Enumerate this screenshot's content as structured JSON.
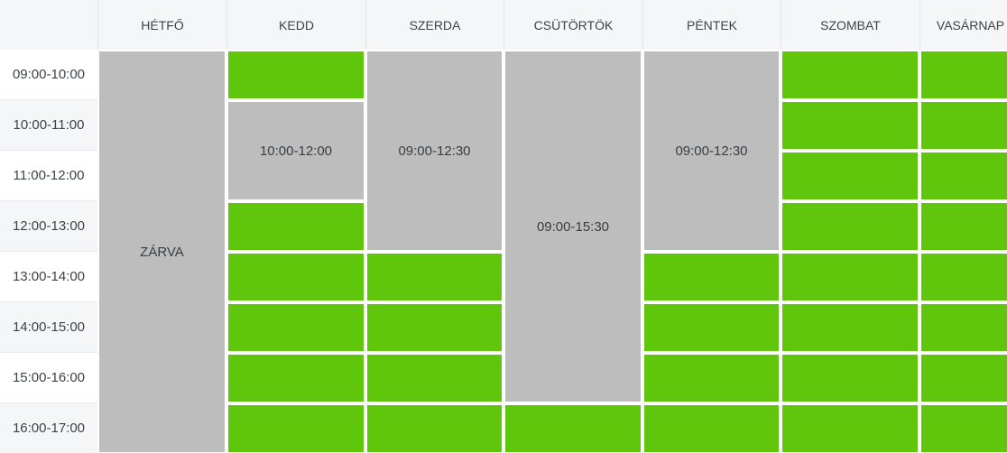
{
  "widget": {
    "type": "weekly-opening-hours-schedule",
    "header": {
      "corner_label": "",
      "days": [
        "HÉTFŐ",
        "KEDD",
        "SZERDA",
        "CSÜTÖRTÖK",
        "PÉNTEK",
        "SZOMBAT",
        "VASÁRNAP"
      ]
    },
    "time_slots": [
      "09:00-10:00",
      "10:00-11:00",
      "11:00-12:00",
      "12:00-13:00",
      "13:00-14:00",
      "14:00-15:00",
      "15:00-16:00",
      "16:00-17:00"
    ],
    "columns": [
      {
        "day": "HÉTFŐ",
        "cells": [
          {
            "type": "closed",
            "row": 0,
            "span": 8,
            "label": "ZÁRVA"
          }
        ]
      },
      {
        "day": "KEDD",
        "cells": [
          {
            "type": "open",
            "row": 0,
            "span": 1
          },
          {
            "type": "closed",
            "row": 1,
            "span": 2,
            "label": "10:00-12:00"
          },
          {
            "type": "open",
            "row": 3,
            "span": 1
          },
          {
            "type": "open",
            "row": 4,
            "span": 1
          },
          {
            "type": "open",
            "row": 5,
            "span": 1
          },
          {
            "type": "open",
            "row": 6,
            "span": 1
          },
          {
            "type": "open",
            "row": 7,
            "span": 1
          }
        ]
      },
      {
        "day": "SZERDA",
        "cells": [
          {
            "type": "closed",
            "row": 0,
            "span": 4,
            "label": "09:00-12:30"
          },
          {
            "type": "open",
            "row": 4,
            "span": 1
          },
          {
            "type": "open",
            "row": 5,
            "span": 1
          },
          {
            "type": "open",
            "row": 6,
            "span": 1
          },
          {
            "type": "open",
            "row": 7,
            "span": 1
          }
        ]
      },
      {
        "day": "CSÜTÖRTÖK",
        "cells": [
          {
            "type": "closed",
            "row": 0,
            "span": 7,
            "label": "09:00-15:30"
          },
          {
            "type": "open",
            "row": 7,
            "span": 1
          }
        ]
      },
      {
        "day": "PÉNTEK",
        "cells": [
          {
            "type": "closed",
            "row": 0,
            "span": 4,
            "label": "09:00-12:30"
          },
          {
            "type": "open",
            "row": 4,
            "span": 1
          },
          {
            "type": "open",
            "row": 5,
            "span": 1
          },
          {
            "type": "open",
            "row": 6,
            "span": 1
          },
          {
            "type": "open",
            "row": 7,
            "span": 1
          }
        ]
      },
      {
        "day": "SZOMBAT",
        "cells": [
          {
            "type": "open",
            "row": 0,
            "span": 1
          },
          {
            "type": "open",
            "row": 1,
            "span": 1
          },
          {
            "type": "open",
            "row": 2,
            "span": 1
          },
          {
            "type": "open",
            "row": 3,
            "span": 1
          },
          {
            "type": "open",
            "row": 4,
            "span": 1
          },
          {
            "type": "open",
            "row": 5,
            "span": 1
          },
          {
            "type": "open",
            "row": 6,
            "span": 1
          },
          {
            "type": "open",
            "row": 7,
            "span": 1
          }
        ]
      },
      {
        "day": "VASÁRNAP",
        "cells": [
          {
            "type": "open",
            "row": 0,
            "span": 1
          },
          {
            "type": "open",
            "row": 1,
            "span": 1
          },
          {
            "type": "open",
            "row": 2,
            "span": 1
          },
          {
            "type": "open",
            "row": 3,
            "span": 1
          },
          {
            "type": "open",
            "row": 4,
            "span": 1
          },
          {
            "type": "open",
            "row": 5,
            "span": 1
          },
          {
            "type": "open",
            "row": 6,
            "span": 1
          },
          {
            "type": "open",
            "row": 7,
            "span": 1
          }
        ]
      }
    ],
    "colors": {
      "open_color": "#60c60b",
      "closed_color": "#bdbdbd",
      "header_bg": "#f5f6f8",
      "stripe_bg": "#f5f6f8",
      "header_line": "#e3e5e9",
      "row_line": "#e9ebee",
      "text_color": "#3e4247",
      "block_text_color": "#3a3d40"
    }
  }
}
